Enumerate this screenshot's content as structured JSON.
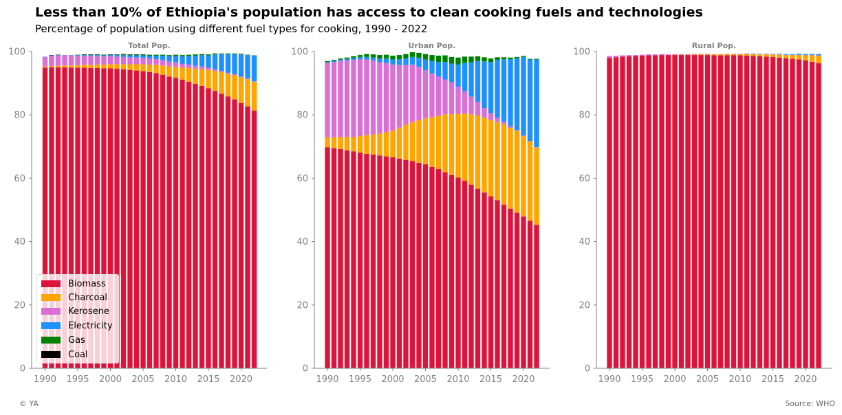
{
  "header": {
    "title": "Less than 10% of Ethiopia's population has access to clean cooking fuels and technologies",
    "subtitle": "Percentage of population using different fuel types for cooking, 1990 - 2022"
  },
  "footer": {
    "left": "© YA",
    "right": "Source: WHO"
  },
  "legend": {
    "placement": "lower-left (first panel)",
    "items": [
      {
        "label": "Biomass",
        "color": "#dc143c"
      },
      {
        "label": "Charcoal",
        "color": "#ffa500"
      },
      {
        "label": "Kerosene",
        "color": "#da70d6"
      },
      {
        "label": "Electricity",
        "color": "#1e90ff"
      },
      {
        "label": "Gas",
        "color": "#008000"
      },
      {
        "label": "Coal",
        "color": "#000000"
      }
    ]
  },
  "chart_data": [
    {
      "type": "bar",
      "stacked": true,
      "title": "Total Pop.",
      "x_start": 1990,
      "x_end": 2022,
      "xticks": [
        "1990",
        "1995",
        "2000",
        "2005",
        "2010",
        "2015",
        "2020"
      ],
      "yticks": [
        "0",
        "20",
        "40",
        "60",
        "80",
        "100"
      ],
      "ylim": [
        0,
        100
      ],
      "grid": false,
      "series": [
        {
          "name": "Biomass",
          "color": "#dc143c",
          "values": [
            94.9,
            95.0,
            95.0,
            95.0,
            94.9,
            94.9,
            94.9,
            94.8,
            94.8,
            94.7,
            94.7,
            94.6,
            94.4,
            94.2,
            94.0,
            93.8,
            93.5,
            93.2,
            92.7,
            92.1,
            91.7,
            91.1,
            90.5,
            89.8,
            89.2,
            88.4,
            87.6,
            86.7,
            85.8,
            84.9,
            83.8,
            82.7,
            81.4
          ]
        },
        {
          "name": "Charcoal",
          "color": "#ffa500",
          "values": [
            0.4,
            0.4,
            0.5,
            0.6,
            0.7,
            0.8,
            0.9,
            1.0,
            1.1,
            1.2,
            1.3,
            1.4,
            1.6,
            1.8,
            2.0,
            2.2,
            2.4,
            2.6,
            2.9,
            3.2,
            3.5,
            3.8,
            4.3,
            4.8,
            5.3,
            5.8,
            6.3,
            6.8,
            7.2,
            7.6,
            8.1,
            8.6,
            9.1
          ]
        },
        {
          "name": "Kerosene",
          "color": "#da70d6",
          "values": [
            3.0,
            3.3,
            3.3,
            3.2,
            3.2,
            3.0,
            2.9,
            2.8,
            2.7,
            2.6,
            2.5,
            2.4,
            2.3,
            2.2,
            2.1,
            2.0,
            1.9,
            1.8,
            1.7,
            1.5,
            1.4,
            1.2,
            1.0,
            0.9,
            0.8,
            0.7,
            0.5,
            0.4,
            0.3,
            0.3,
            0.2,
            0.2,
            0.1
          ]
        },
        {
          "name": "Electricity",
          "color": "#1e90ff",
          "values": [
            0.1,
            0.1,
            0.1,
            0.1,
            0.1,
            0.2,
            0.2,
            0.3,
            0.3,
            0.3,
            0.4,
            0.5,
            0.6,
            0.6,
            0.7,
            0.8,
            0.9,
            1.1,
            1.4,
            1.8,
            2.0,
            2.4,
            2.8,
            3.2,
            3.6,
            3.9,
            4.7,
            5.3,
            5.9,
            6.4,
            7.0,
            7.4,
            8.1
          ]
        },
        {
          "name": "Gas",
          "color": "#008000",
          "values": [
            0.0,
            0.0,
            0.0,
            0.0,
            0.0,
            0.1,
            0.1,
            0.1,
            0.1,
            0.1,
            0.1,
            0.1,
            0.2,
            0.2,
            0.2,
            0.2,
            0.3,
            0.3,
            0.3,
            0.3,
            0.4,
            0.4,
            0.4,
            0.4,
            0.3,
            0.3,
            0.3,
            0.2,
            0.2,
            0.2,
            0.2,
            0.1,
            0.1
          ]
        },
        {
          "name": "Coal",
          "color": "#000000",
          "values": [
            0.0,
            0.1,
            0.1,
            0.0,
            0.0,
            0.0,
            0.1,
            0.1,
            0.1,
            0.1,
            0.1,
            0.1,
            0.1,
            0.1,
            0.1,
            0.1,
            0.0,
            0.0,
            0.0,
            0.0,
            0.0,
            0.0,
            0.0,
            0.0,
            0.0,
            0.0,
            0.0,
            0.0,
            0.0,
            0.0,
            0.0,
            0.0,
            0.0
          ]
        }
      ]
    },
    {
      "type": "bar",
      "stacked": true,
      "title": "Urban Pop.",
      "x_start": 1990,
      "x_end": 2022,
      "xticks": [
        "1990",
        "1995",
        "2000",
        "2005",
        "2010",
        "2015",
        "2020"
      ],
      "yticks": [
        "0",
        "20",
        "40",
        "60",
        "80",
        "100"
      ],
      "ylim": [
        0,
        100
      ],
      "grid": false,
      "series": [
        {
          "name": "Biomass",
          "color": "#dc143c",
          "values": [
            69.8,
            69.5,
            69.2,
            68.8,
            68.5,
            68.1,
            67.7,
            67.5,
            67.2,
            66.9,
            66.6,
            66.2,
            65.8,
            65.4,
            64.9,
            64.4,
            63.6,
            62.9,
            61.9,
            61.0,
            60.2,
            59.2,
            58.0,
            56.7,
            55.5,
            54.3,
            53.1,
            51.7,
            50.4,
            49.1,
            47.9,
            46.6,
            45.3
          ]
        },
        {
          "name": "Charcoal",
          "color": "#ffa500",
          "values": [
            3.1,
            3.4,
            3.8,
            4.2,
            4.5,
            5.2,
            5.9,
            6.3,
            6.9,
            7.6,
            8.5,
            9.8,
            11.1,
            12.3,
            13.4,
            14.5,
            15.7,
            16.8,
            18.3,
            19.2,
            20.1,
            21.2,
            22.2,
            23.1,
            23.6,
            24.1,
            24.6,
            25.3,
            25.5,
            25.8,
            25.4,
            25.1,
            24.4
          ]
        },
        {
          "name": "Kerosene",
          "color": "#da70d6",
          "values": [
            23.5,
            23.8,
            24.1,
            24.2,
            24.4,
            24.3,
            23.9,
            23.4,
            22.5,
            21.9,
            20.8,
            19.8,
            18.8,
            18.2,
            16.8,
            15.2,
            13.8,
            12.4,
            11.0,
            10.0,
            8.6,
            7.0,
            5.6,
            4.3,
            3.1,
            2.1,
            1.4,
            0.9,
            0.5,
            0.3,
            0.2,
            0.1,
            0.1
          ]
        },
        {
          "name": "Electricity",
          "color": "#1e90ff",
          "values": [
            0.3,
            0.4,
            0.4,
            0.5,
            0.6,
            0.7,
            0.8,
            0.9,
            1.2,
            1.4,
            1.6,
            1.8,
            2.1,
            2.4,
            2.9,
            3.4,
            3.9,
            4.6,
            5.5,
            6.0,
            7.0,
            9.0,
            10.8,
            12.9,
            14.7,
            16.2,
            18.3,
            19.7,
            21.2,
            22.7,
            24.8,
            25.7,
            27.7
          ]
        },
        {
          "name": "Gas",
          "color": "#008000",
          "values": [
            0.3,
            0.3,
            0.3,
            0.4,
            0.5,
            0.6,
            0.9,
            1.0,
            1.1,
            1.2,
            1.2,
            1.3,
            1.4,
            1.5,
            1.6,
            1.7,
            1.9,
            2.0,
            2.1,
            2.1,
            2.2,
            2.0,
            1.8,
            1.5,
            1.3,
            1.1,
            0.8,
            0.6,
            0.5,
            0.4,
            0.3,
            0.2,
            0.2
          ]
        },
        {
          "name": "Coal",
          "color": "#000000",
          "values": [
            0.0,
            0.0,
            0.0,
            0.0,
            0.0,
            0.0,
            0.0,
            0.0,
            0.0,
            0.0,
            0.0,
            0.0,
            0.0,
            0.0,
            0.0,
            0.0,
            0.0,
            0.0,
            0.0,
            0.0,
            0.0,
            0.0,
            0.0,
            0.0,
            0.0,
            0.0,
            0.0,
            0.0,
            0.0,
            0.0,
            0.0,
            0.0,
            0.0
          ]
        }
      ]
    },
    {
      "type": "bar",
      "stacked": true,
      "title": "Rural Pop.",
      "x_start": 1990,
      "x_end": 2022,
      "xticks": [
        "1990",
        "1995",
        "2000",
        "2005",
        "2010",
        "2015",
        "2020"
      ],
      "yticks": [
        "0",
        "20",
        "40",
        "60",
        "80",
        "100"
      ],
      "ylim": [
        0,
        100
      ],
      "grid": false,
      "series": [
        {
          "name": "Biomass",
          "color": "#dc143c",
          "values": [
            98.0,
            98.2,
            98.4,
            98.5,
            98.6,
            98.7,
            98.8,
            98.8,
            98.9,
            98.9,
            98.9,
            98.9,
            98.9,
            98.9,
            98.9,
            98.9,
            98.8,
            98.8,
            98.8,
            98.8,
            98.8,
            98.7,
            98.6,
            98.5,
            98.4,
            98.3,
            98.1,
            97.9,
            97.7,
            97.5,
            97.2,
            96.8,
            96.3
          ]
        },
        {
          "name": "Charcoal",
          "color": "#ffa500",
          "values": [
            0.0,
            0.0,
            0.0,
            0.0,
            0.0,
            0.0,
            0.0,
            0.0,
            0.0,
            0.0,
            0.1,
            0.1,
            0.1,
            0.2,
            0.2,
            0.3,
            0.3,
            0.3,
            0.4,
            0.4,
            0.4,
            0.5,
            0.6,
            0.6,
            0.7,
            0.8,
            0.9,
            1.0,
            1.2,
            1.4,
            1.6,
            2.0,
            2.4
          ]
        },
        {
          "name": "Kerosene",
          "color": "#da70d6",
          "values": [
            0.6,
            0.5,
            0.4,
            0.4,
            0.3,
            0.3,
            0.3,
            0.3,
            0.3,
            0.2,
            0.2,
            0.2,
            0.2,
            0.2,
            0.2,
            0.1,
            0.1,
            0.1,
            0.1,
            0.1,
            0.1,
            0.1,
            0.1,
            0.1,
            0.1,
            0.1,
            0.1,
            0.1,
            0.1,
            0.1,
            0.1,
            0.1,
            0.1
          ]
        },
        {
          "name": "Electricity",
          "color": "#1e90ff",
          "values": [
            0.0,
            0.0,
            0.0,
            0.0,
            0.0,
            0.0,
            0.0,
            0.0,
            0.0,
            0.0,
            0.0,
            0.0,
            0.0,
            0.0,
            0.0,
            0.0,
            0.0,
            0.0,
            0.0,
            0.0,
            0.0,
            0.1,
            0.1,
            0.1,
            0.1,
            0.1,
            0.2,
            0.2,
            0.2,
            0.3,
            0.3,
            0.3,
            0.4
          ]
        },
        {
          "name": "Gas",
          "color": "#008000",
          "values": [
            0.0,
            0.0,
            0.0,
            0.0,
            0.0,
            0.0,
            0.0,
            0.0,
            0.0,
            0.0,
            0.0,
            0.0,
            0.0,
            0.0,
            0.0,
            0.0,
            0.0,
            0.0,
            0.0,
            0.0,
            0.0,
            0.0,
            0.0,
            0.0,
            0.0,
            0.0,
            0.0,
            0.0,
            0.0,
            0.0,
            0.0,
            0.0,
            0.0
          ]
        },
        {
          "name": "Coal",
          "color": "#000000",
          "values": [
            0.0,
            0.0,
            0.0,
            0.0,
            0.0,
            0.0,
            0.0,
            0.0,
            0.0,
            0.0,
            0.0,
            0.0,
            0.0,
            0.0,
            0.0,
            0.0,
            0.0,
            0.0,
            0.0,
            0.0,
            0.0,
            0.0,
            0.0,
            0.0,
            0.0,
            0.0,
            0.0,
            0.0,
            0.0,
            0.0,
            0.0,
            0.0,
            0.0
          ]
        }
      ]
    }
  ]
}
